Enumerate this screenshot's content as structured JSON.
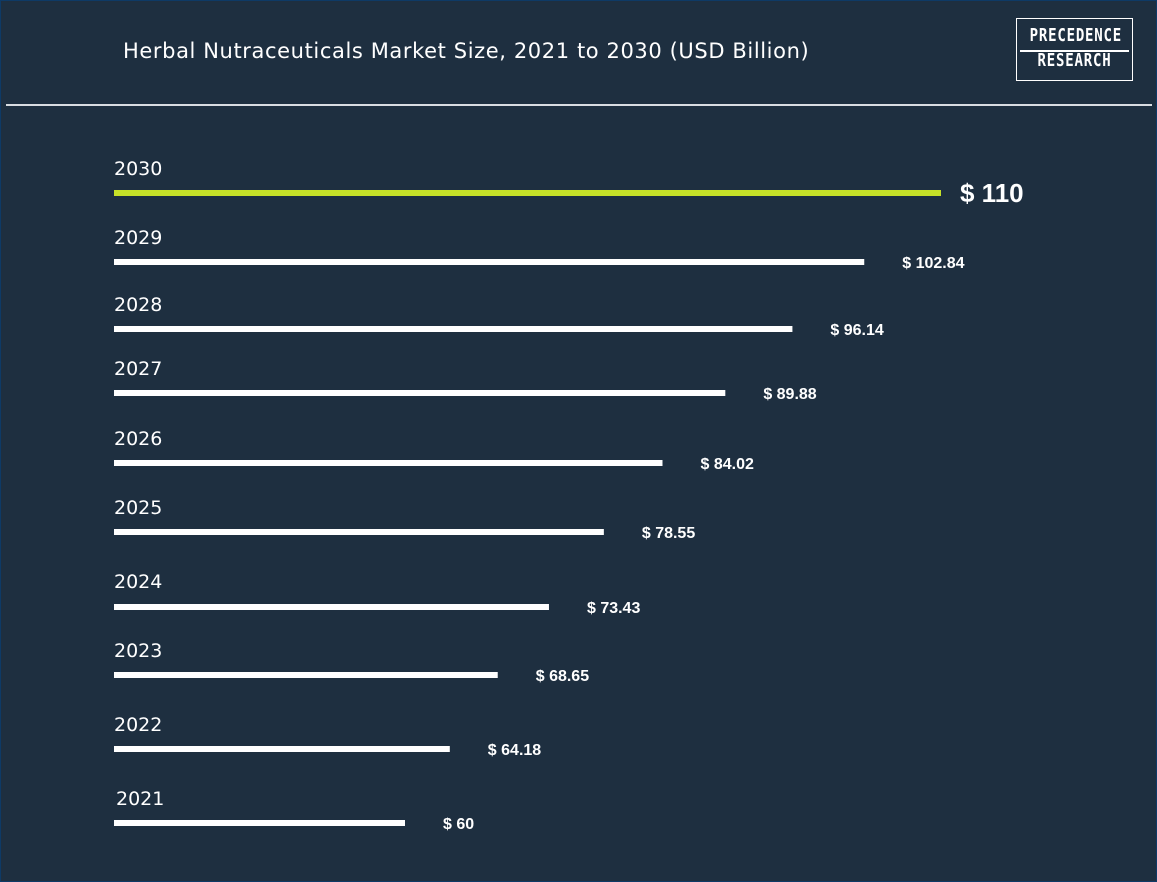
{
  "header": {
    "title": "Herbal Nutraceuticals Market Size, 2021 to 2030 (USD Billion)",
    "logo_line1": "PRECEDENCE",
    "logo_line2": "RESEARCH"
  },
  "colors": {
    "background": "#1e2f40",
    "bar": "#ffffff",
    "highlight_bar": "#c6e128",
    "text": "#ffffff"
  },
  "chart_data": {
    "type": "bar",
    "orientation": "horizontal",
    "title": "Herbal Nutraceuticals Market Size, 2021 to 2030 (USD Billion)",
    "categories": [
      "2030",
      "2029",
      "2028",
      "2027",
      "2026",
      "2025",
      "2024",
      "2023",
      "2022",
      "2021"
    ],
    "values": [
      110,
      102.84,
      96.14,
      89.88,
      84.02,
      78.55,
      73.43,
      68.65,
      64.18,
      60
    ],
    "value_labels": [
      "$ 110",
      "$ 102.84",
      "$ 96.14",
      "$ 89.88",
      "$ 84.02",
      "$ 78.55",
      "$ 73.43",
      "$ 68.65",
      "$ 64.18",
      "$ 60"
    ],
    "highlight_category": "2030",
    "xlabel": "",
    "ylabel": "",
    "grid": false,
    "legend": "none"
  }
}
